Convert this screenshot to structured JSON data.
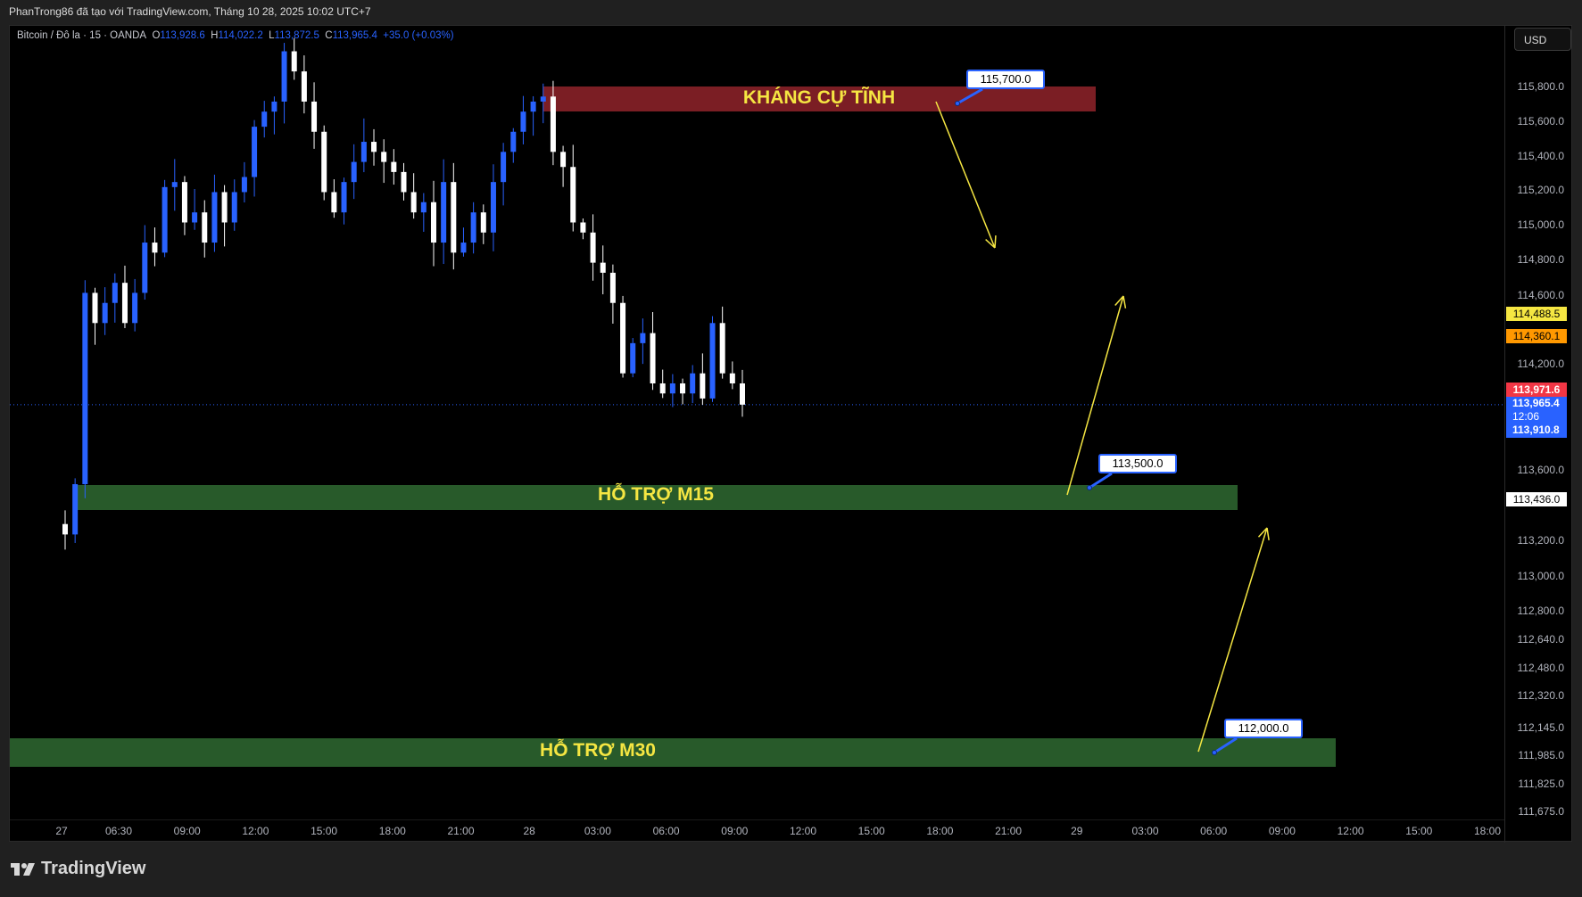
{
  "header": {
    "attribution": "PhanTrong86 đã tạo với TradingView.com, Tháng 10 28, 2025 10:02 UTC+7"
  },
  "legend": {
    "symbol": "Bitcoin / Đô la · 15 · OANDA",
    "o_label": "O",
    "o": "113,928.6",
    "h_label": "H",
    "h": "114,022.2",
    "l_label": "L",
    "l": "113,872.5",
    "c_label": "C",
    "c": "113,965.4",
    "change": "+35.0 (+0.03%)"
  },
  "currency_button": "USD",
  "price_axis": {
    "labels": [
      "115,800.0",
      "115,600.0",
      "115,400.0",
      "115,200.0",
      "115,000.0",
      "114,800.0",
      "114,600.0",
      "114,200.0",
      "113,600.0",
      "113,200.0",
      "113,000.0",
      "112,800.0",
      "112,640.0",
      "112,480.0",
      "112,320.0",
      "112,145.0",
      "111,985.0",
      "111,825.0",
      "111,675.0"
    ],
    "tags": {
      "yellow": "114,488.5",
      "orange": "114,360.1",
      "red": "113,971.6",
      "last": "113,965.4",
      "countdown": "12:06",
      "blue": "113,910.8",
      "white": "113,436.0"
    }
  },
  "time_axis": [
    "27",
    "06:30",
    "09:00",
    "12:00",
    "15:00",
    "18:00",
    "21:00",
    "28",
    "03:00",
    "06:00",
    "09:00",
    "12:00",
    "15:00",
    "18:00",
    "21:00",
    "29",
    "03:00",
    "06:00",
    "09:00",
    "12:00",
    "15:00",
    "18:00"
  ],
  "zones": {
    "resistance": {
      "label": "KHÁNG CỰ TĨNH",
      "price": "115,700.0",
      "color": "#7b1e24"
    },
    "support_m15": {
      "label": "HỖ TRỢ M15",
      "price": "113,500.0",
      "color": "#285a2a"
    },
    "support_m30": {
      "label": "HỖ TRỢ M30",
      "price": "112,000.0",
      "color": "#285a2a"
    }
  },
  "colors": {
    "up": "#2962ff",
    "down": "#ffffff",
    "arrow": "#f5e642",
    "background": "#000000"
  },
  "logo": "TradingView",
  "chart_data": {
    "type": "candlestick",
    "interval": "15",
    "symbol": "Bitcoin / Đô la",
    "closes": [
      113217,
      113507,
      114610,
      114436,
      114552,
      114668,
      114436,
      114610,
      114900,
      114842,
      115220,
      115249,
      115016,
      115074,
      114900,
      115191,
      115016,
      115191,
      115278,
      115568,
      115655,
      115713,
      116003,
      115887,
      115713,
      115539,
      115191,
      115074,
      115249,
      115365,
      115481,
      115423,
      115365,
      115307,
      115191,
      115074,
      115133,
      114900,
      115249,
      114842,
      114900,
      115074,
      114958,
      115249,
      115423,
      115539,
      115655,
      115713,
      115742,
      115423,
      115336,
      115016,
      114958,
      114784,
      114726,
      114552,
      114146,
      114320,
      114378,
      114088,
      114030,
      114088,
      114030,
      114146,
      114001,
      114436,
      114146,
      114088,
      113965.4
    ],
    "ylim": [
      111600,
      116100
    ]
  }
}
